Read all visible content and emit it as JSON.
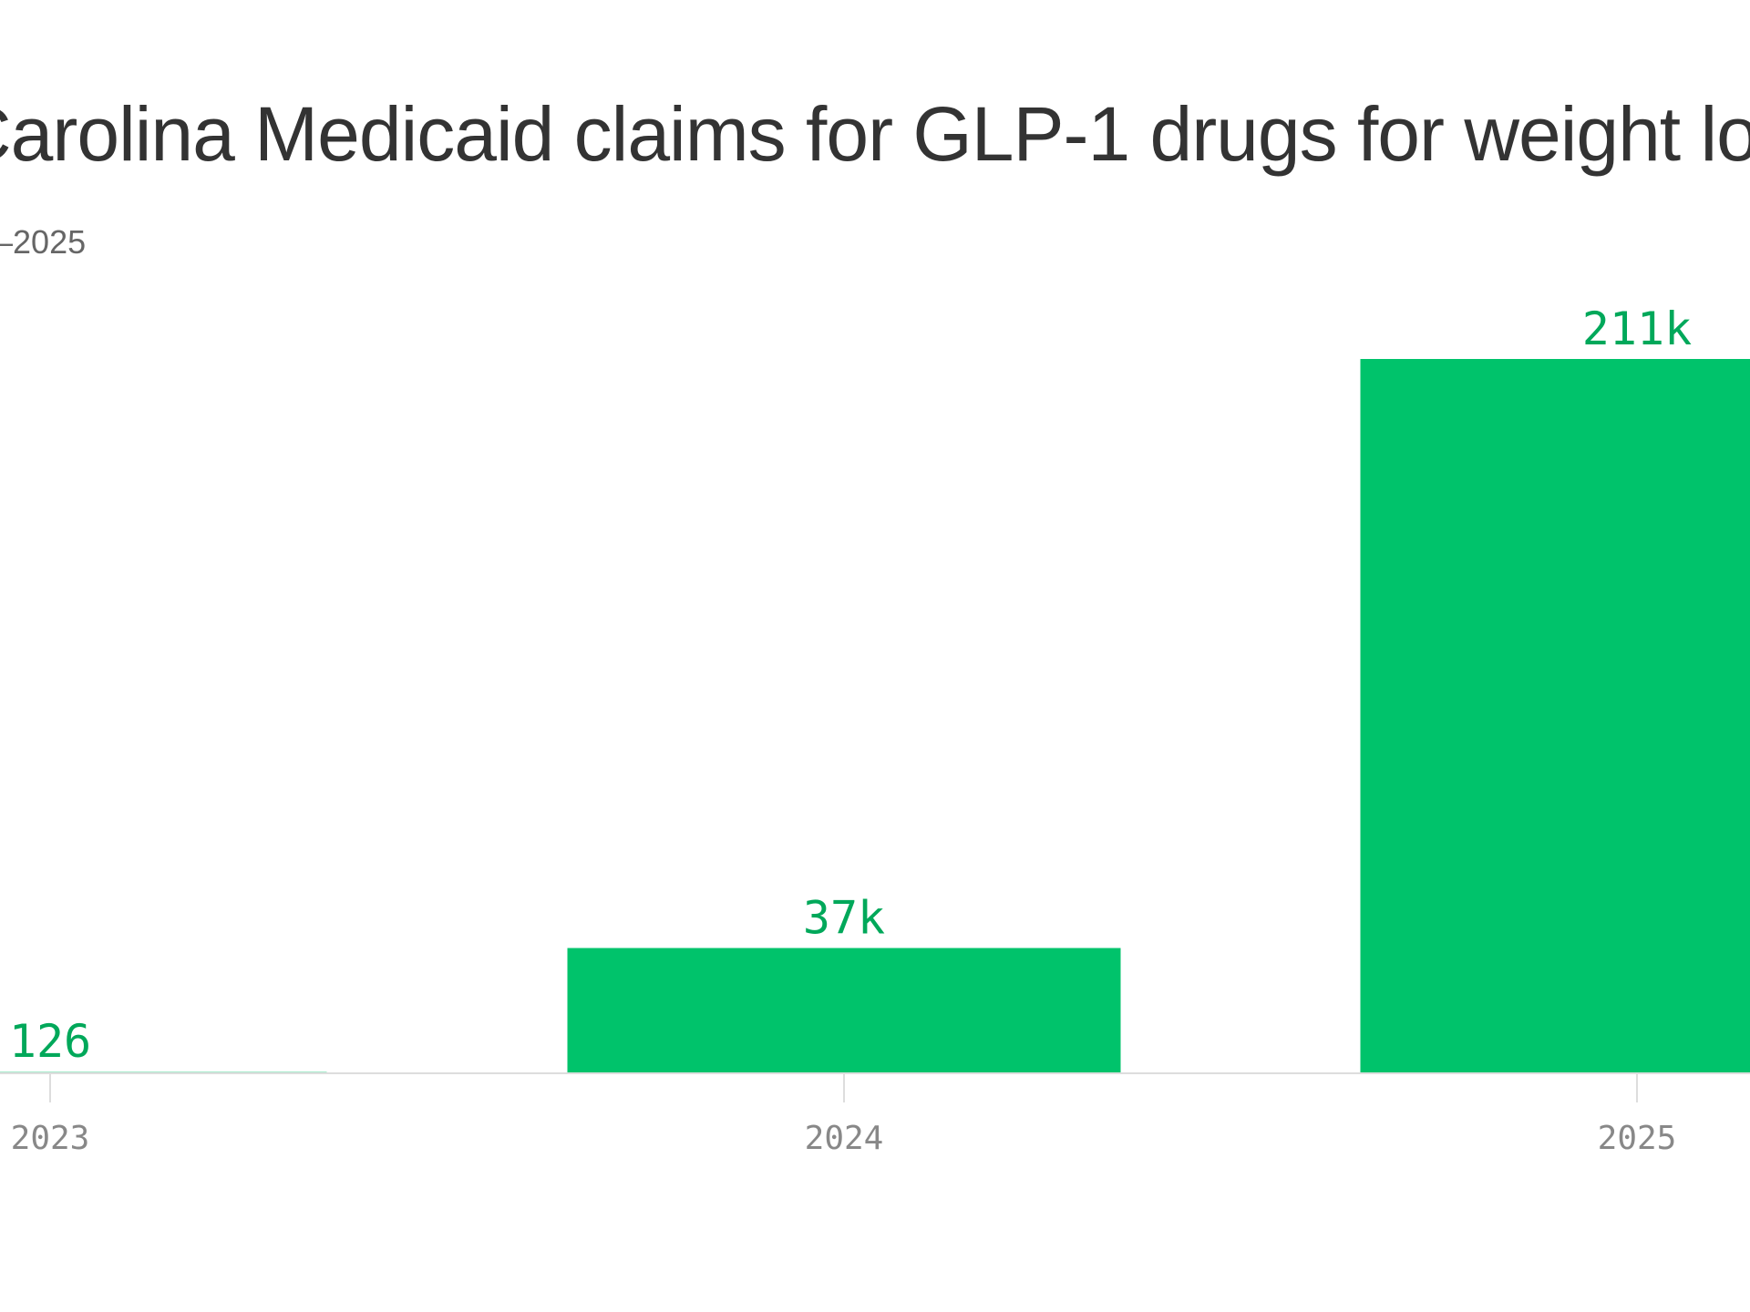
{
  "chart_data": {
    "type": "bar",
    "title": "Carolina Medicaid claims for GLP-1 drugs for weight lo",
    "subtitle": "–2025",
    "categories": [
      "2023",
      "2024",
      "2025"
    ],
    "values": [
      126,
      37000,
      211000
    ],
    "value_labels": [
      "126",
      "37k",
      "211k"
    ],
    "xlabel": "",
    "ylabel": "",
    "ylim": [
      0,
      211000
    ],
    "grid": false,
    "legend": "none"
  },
  "colors": {
    "bar": "#00c36b",
    "value_label": "#00a85a",
    "axis": "#dddddd",
    "tick_label": "#888888",
    "title": "#333333",
    "subtitle": "#666666"
  }
}
